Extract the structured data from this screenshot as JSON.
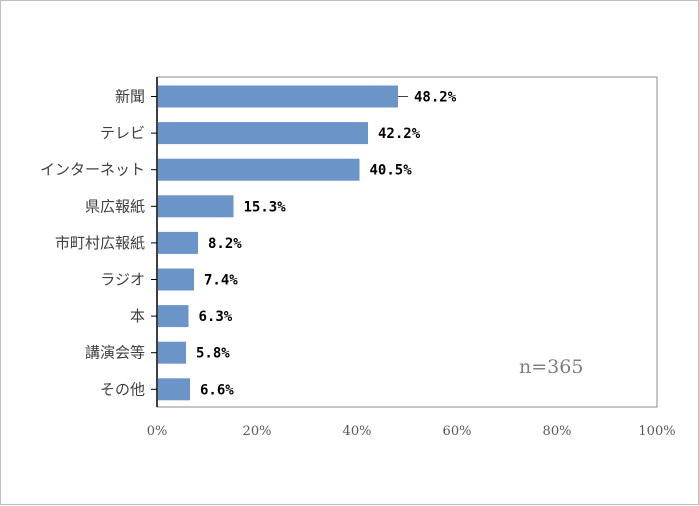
{
  "chart_data": {
    "type": "bar",
    "orientation": "horizontal",
    "categories": [
      "新聞",
      "テレビ",
      "インターネット",
      "県広報紙",
      "市町村広報紙",
      "ラジオ",
      "本",
      "講演会等",
      "その他"
    ],
    "values": [
      48.2,
      42.2,
      40.5,
      15.3,
      8.2,
      7.4,
      6.3,
      5.8,
      6.6
    ],
    "value_labels": [
      "48.2%",
      "42.2%",
      "40.5%",
      "15.3%",
      "8.2%",
      "7.4%",
      "6.3%",
      "5.8%",
      "6.6%"
    ],
    "xlim": [
      0,
      100
    ],
    "x_ticks": [
      "0%",
      "20%",
      "40%",
      "60%",
      "80%",
      "100%"
    ],
    "annotation": "n=365",
    "grid": false,
    "legend": "none",
    "bar_color": "#6b95c9"
  }
}
